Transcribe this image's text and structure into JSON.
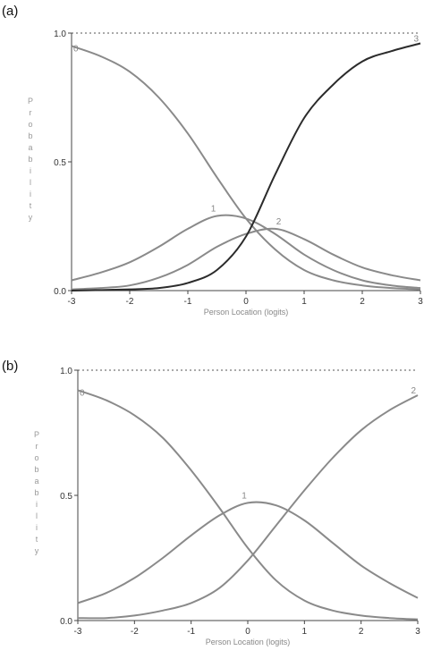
{
  "chart_data": [
    {
      "type": "line",
      "panel_label": "(a)",
      "xlabel": "Person Location (logits)",
      "ylabel": "Probability",
      "xlim": [
        -3,
        3
      ],
      "ylim": [
        0,
        1
      ],
      "x_ticks": [
        "-3",
        "-2",
        "-1",
        "0",
        "1",
        "2",
        "3"
      ],
      "y_ticks": [
        "0.0",
        "0.5",
        "1.0"
      ],
      "reference_line": 1.0,
      "x": [
        -3,
        -2.5,
        -2,
        -1.5,
        -1,
        -0.5,
        0,
        0.5,
        1,
        1.5,
        2,
        2.5,
        3
      ],
      "series": [
        {
          "name": "0",
          "color": "#8a8a8a",
          "values": [
            0.95,
            0.91,
            0.85,
            0.75,
            0.61,
            0.44,
            0.28,
            0.16,
            0.08,
            0.04,
            0.02,
            0.01,
            0.005
          ]
        },
        {
          "name": "1",
          "color": "#8a8a8a",
          "values": [
            0.04,
            0.07,
            0.11,
            0.17,
            0.24,
            0.29,
            0.28,
            0.22,
            0.14,
            0.08,
            0.04,
            0.02,
            0.01
          ]
        },
        {
          "name": "2",
          "color": "#8a8a8a",
          "values": [
            0.005,
            0.01,
            0.02,
            0.05,
            0.1,
            0.17,
            0.22,
            0.24,
            0.2,
            0.14,
            0.09,
            0.06,
            0.04
          ]
        },
        {
          "name": "3",
          "color": "#2b2b2b",
          "values": [
            0.0,
            0.002,
            0.005,
            0.01,
            0.03,
            0.08,
            0.21,
            0.45,
            0.67,
            0.8,
            0.89,
            0.93,
            0.96
          ]
        }
      ]
    },
    {
      "type": "line",
      "panel_label": "(b)",
      "xlabel": "Person Location (logits)",
      "ylabel": "Probability",
      "xlim": [
        -3,
        3
      ],
      "ylim": [
        0,
        1
      ],
      "x_ticks": [
        "-3",
        "-2",
        "-1",
        "0",
        "1",
        "2",
        "3"
      ],
      "y_ticks": [
        "0.0",
        "0.5",
        "1.0"
      ],
      "reference_line": 1.0,
      "x": [
        -3,
        -2.5,
        -2,
        -1.5,
        -1,
        -0.5,
        0,
        0.5,
        1,
        1.5,
        2,
        2.5,
        3
      ],
      "series": [
        {
          "name": "0",
          "color": "#8a8a8a",
          "values": [
            0.92,
            0.88,
            0.82,
            0.73,
            0.6,
            0.45,
            0.29,
            0.16,
            0.08,
            0.04,
            0.02,
            0.01,
            0.005
          ]
        },
        {
          "name": "1",
          "color": "#8a8a8a",
          "values": [
            0.07,
            0.11,
            0.17,
            0.25,
            0.34,
            0.42,
            0.47,
            0.46,
            0.4,
            0.31,
            0.22,
            0.15,
            0.09
          ]
        },
        {
          "name": "2",
          "color": "#8a8a8a",
          "values": [
            0.01,
            0.01,
            0.02,
            0.04,
            0.07,
            0.13,
            0.24,
            0.38,
            0.52,
            0.65,
            0.76,
            0.84,
            0.9
          ]
        }
      ]
    }
  ]
}
